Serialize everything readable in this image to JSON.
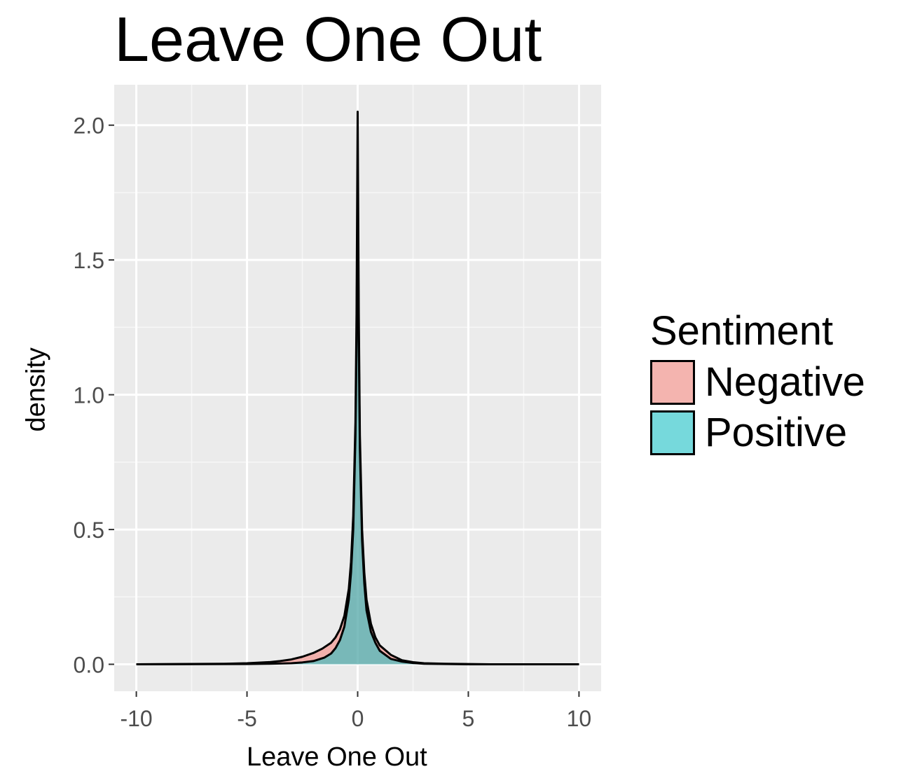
{
  "chart_data": {
    "type": "area",
    "title": "Leave One Out",
    "xlabel": "Leave One Out",
    "ylabel": "density",
    "xlim": [
      -11,
      11
    ],
    "ylim": [
      -0.1,
      2.15
    ],
    "x_ticks": [
      -10,
      -5,
      0,
      5,
      10
    ],
    "x_tick_labels": [
      "-10",
      "-5",
      "0",
      "5",
      "10"
    ],
    "y_ticks": [
      0.0,
      0.5,
      1.0,
      1.5,
      2.0
    ],
    "y_tick_labels": [
      "0.0",
      "0.5",
      "1.0",
      "1.5",
      "2.0"
    ],
    "grid": true,
    "legend": {
      "title": "Sentiment",
      "position": "right",
      "items": [
        {
          "label": "Negative",
          "color": "#F8766D"
        },
        {
          "label": "Positive",
          "color": "#00BFC4"
        }
      ]
    },
    "series": [
      {
        "name": "Negative",
        "fill": "#F8766D",
        "x": [
          -10,
          -6,
          -5,
          -4,
          -3.5,
          -3,
          -2.5,
          -2,
          -1.6,
          -1.2,
          -1,
          -0.8,
          -0.6,
          -0.4,
          -0.3,
          -0.2,
          -0.1,
          -0.05,
          0,
          0.05,
          0.1,
          0.2,
          0.3,
          0.4,
          0.6,
          0.8,
          1,
          1.5,
          2,
          2.5,
          3,
          4,
          5,
          6,
          10
        ],
        "y": [
          0.0,
          0.002,
          0.004,
          0.008,
          0.012,
          0.018,
          0.028,
          0.042,
          0.058,
          0.08,
          0.1,
          0.13,
          0.18,
          0.28,
          0.38,
          0.55,
          0.9,
          1.3,
          2.05,
          1.3,
          0.85,
          0.5,
          0.34,
          0.24,
          0.15,
          0.1,
          0.07,
          0.035,
          0.015,
          0.008,
          0.004,
          0.002,
          0.001,
          0.0,
          0.0
        ]
      },
      {
        "name": "Positive",
        "fill": "#00BFC4",
        "x": [
          -10,
          -5,
          -4,
          -3,
          -2.5,
          -2,
          -1.5,
          -1.2,
          -1,
          -0.8,
          -0.6,
          -0.4,
          -0.3,
          -0.2,
          -0.1,
          -0.05,
          0,
          0.05,
          0.1,
          0.2,
          0.3,
          0.4,
          0.6,
          0.8,
          1,
          1.5,
          2,
          2.5,
          3,
          4,
          5,
          10
        ],
        "y": [
          0.0,
          0.001,
          0.002,
          0.004,
          0.007,
          0.012,
          0.025,
          0.04,
          0.06,
          0.09,
          0.14,
          0.24,
          0.34,
          0.5,
          0.85,
          1.2,
          1.8,
          1.2,
          0.8,
          0.46,
          0.3,
          0.2,
          0.12,
          0.08,
          0.05,
          0.02,
          0.01,
          0.005,
          0.002,
          0.001,
          0.0,
          0.0
        ]
      }
    ]
  }
}
